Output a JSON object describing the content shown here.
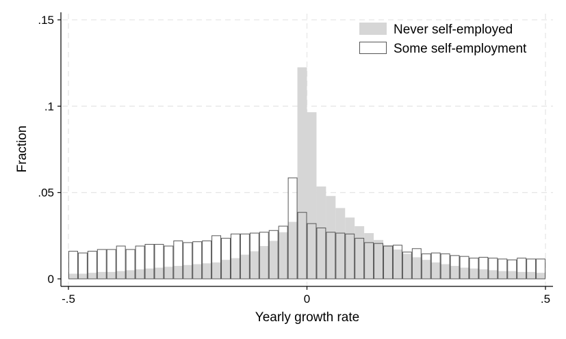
{
  "chart_data": {
    "type": "bar",
    "xlabel": "Yearly growth rate",
    "ylabel": "Fraction",
    "xlim": [
      -0.5,
      0.5
    ],
    "ylim": [
      0,
      0.15
    ],
    "x_ticks": [
      {
        "value": -0.5,
        "label": "-.5"
      },
      {
        "value": 0,
        "label": "0"
      },
      {
        "value": 0.5,
        "label": ".5"
      }
    ],
    "y_ticks": [
      {
        "value": 0,
        "label": "0"
      },
      {
        "value": 0.05,
        "label": ".05"
      },
      {
        "value": 0.1,
        "label": ".1"
      },
      {
        "value": 0.15,
        "label": ".15"
      }
    ],
    "grid": true,
    "legend_position": "top-right",
    "colors": {
      "never": "#d6d6d6",
      "some_fill": "#ffffff",
      "some_edge": "#555555",
      "grid": "#e6e6e6"
    },
    "series": [
      {
        "name": "Never self-employed",
        "style": "filled",
        "bin_width": 0.02,
        "bins_start": [
          -0.5,
          -0.48,
          -0.46,
          -0.44,
          -0.42,
          -0.4,
          -0.38,
          -0.36,
          -0.34,
          -0.32,
          -0.3,
          -0.28,
          -0.26,
          -0.24,
          -0.22,
          -0.2,
          -0.18,
          -0.16,
          -0.14,
          -0.12,
          -0.1,
          -0.08,
          -0.06,
          -0.04,
          -0.02,
          0,
          0.02,
          0.04,
          0.06,
          0.08,
          0.1,
          0.12,
          0.14,
          0.16,
          0.18,
          0.2,
          0.22,
          0.24,
          0.26,
          0.28,
          0.3,
          0.32,
          0.34,
          0.36,
          0.38,
          0.4,
          0.42,
          0.44,
          0.46,
          0.48
        ],
        "values": [
          0.003,
          0.003,
          0.0035,
          0.004,
          0.004,
          0.0045,
          0.005,
          0.0055,
          0.006,
          0.0065,
          0.007,
          0.0075,
          0.008,
          0.0085,
          0.009,
          0.0095,
          0.011,
          0.012,
          0.014,
          0.016,
          0.019,
          0.022,
          0.027,
          0.033,
          0.1225,
          0.0965,
          0.0535,
          0.048,
          0.041,
          0.0355,
          0.0305,
          0.0265,
          0.0225,
          0.0195,
          0.017,
          0.0145,
          0.0125,
          0.011,
          0.0095,
          0.0085,
          0.0075,
          0.0065,
          0.006,
          0.0055,
          0.005,
          0.0045,
          0.0045,
          0.004,
          0.004,
          0.0035
        ]
      },
      {
        "name": "Some self-employment",
        "style": "outline",
        "bin_width": 0.02,
        "bins_start": [
          -0.5,
          -0.48,
          -0.46,
          -0.44,
          -0.42,
          -0.4,
          -0.38,
          -0.36,
          -0.34,
          -0.32,
          -0.3,
          -0.28,
          -0.26,
          -0.24,
          -0.22,
          -0.2,
          -0.18,
          -0.16,
          -0.14,
          -0.12,
          -0.1,
          -0.08,
          -0.06,
          -0.04,
          -0.02,
          0,
          0.02,
          0.04,
          0.06,
          0.08,
          0.1,
          0.12,
          0.14,
          0.16,
          0.18,
          0.2,
          0.22,
          0.24,
          0.26,
          0.28,
          0.3,
          0.32,
          0.34,
          0.36,
          0.38,
          0.4,
          0.42,
          0.44,
          0.46,
          0.48
        ],
        "values": [
          0.016,
          0.015,
          0.016,
          0.017,
          0.017,
          0.019,
          0.017,
          0.019,
          0.02,
          0.02,
          0.019,
          0.022,
          0.021,
          0.0215,
          0.022,
          0.025,
          0.0235,
          0.026,
          0.026,
          0.0265,
          0.027,
          0.028,
          0.0305,
          0.0585,
          0.0385,
          0.032,
          0.0295,
          0.027,
          0.0265,
          0.026,
          0.0235,
          0.021,
          0.0205,
          0.019,
          0.0195,
          0.0155,
          0.0175,
          0.0145,
          0.015,
          0.0145,
          0.0135,
          0.013,
          0.012,
          0.0125,
          0.012,
          0.0115,
          0.011,
          0.012,
          0.0115,
          0.0115
        ]
      }
    ]
  }
}
